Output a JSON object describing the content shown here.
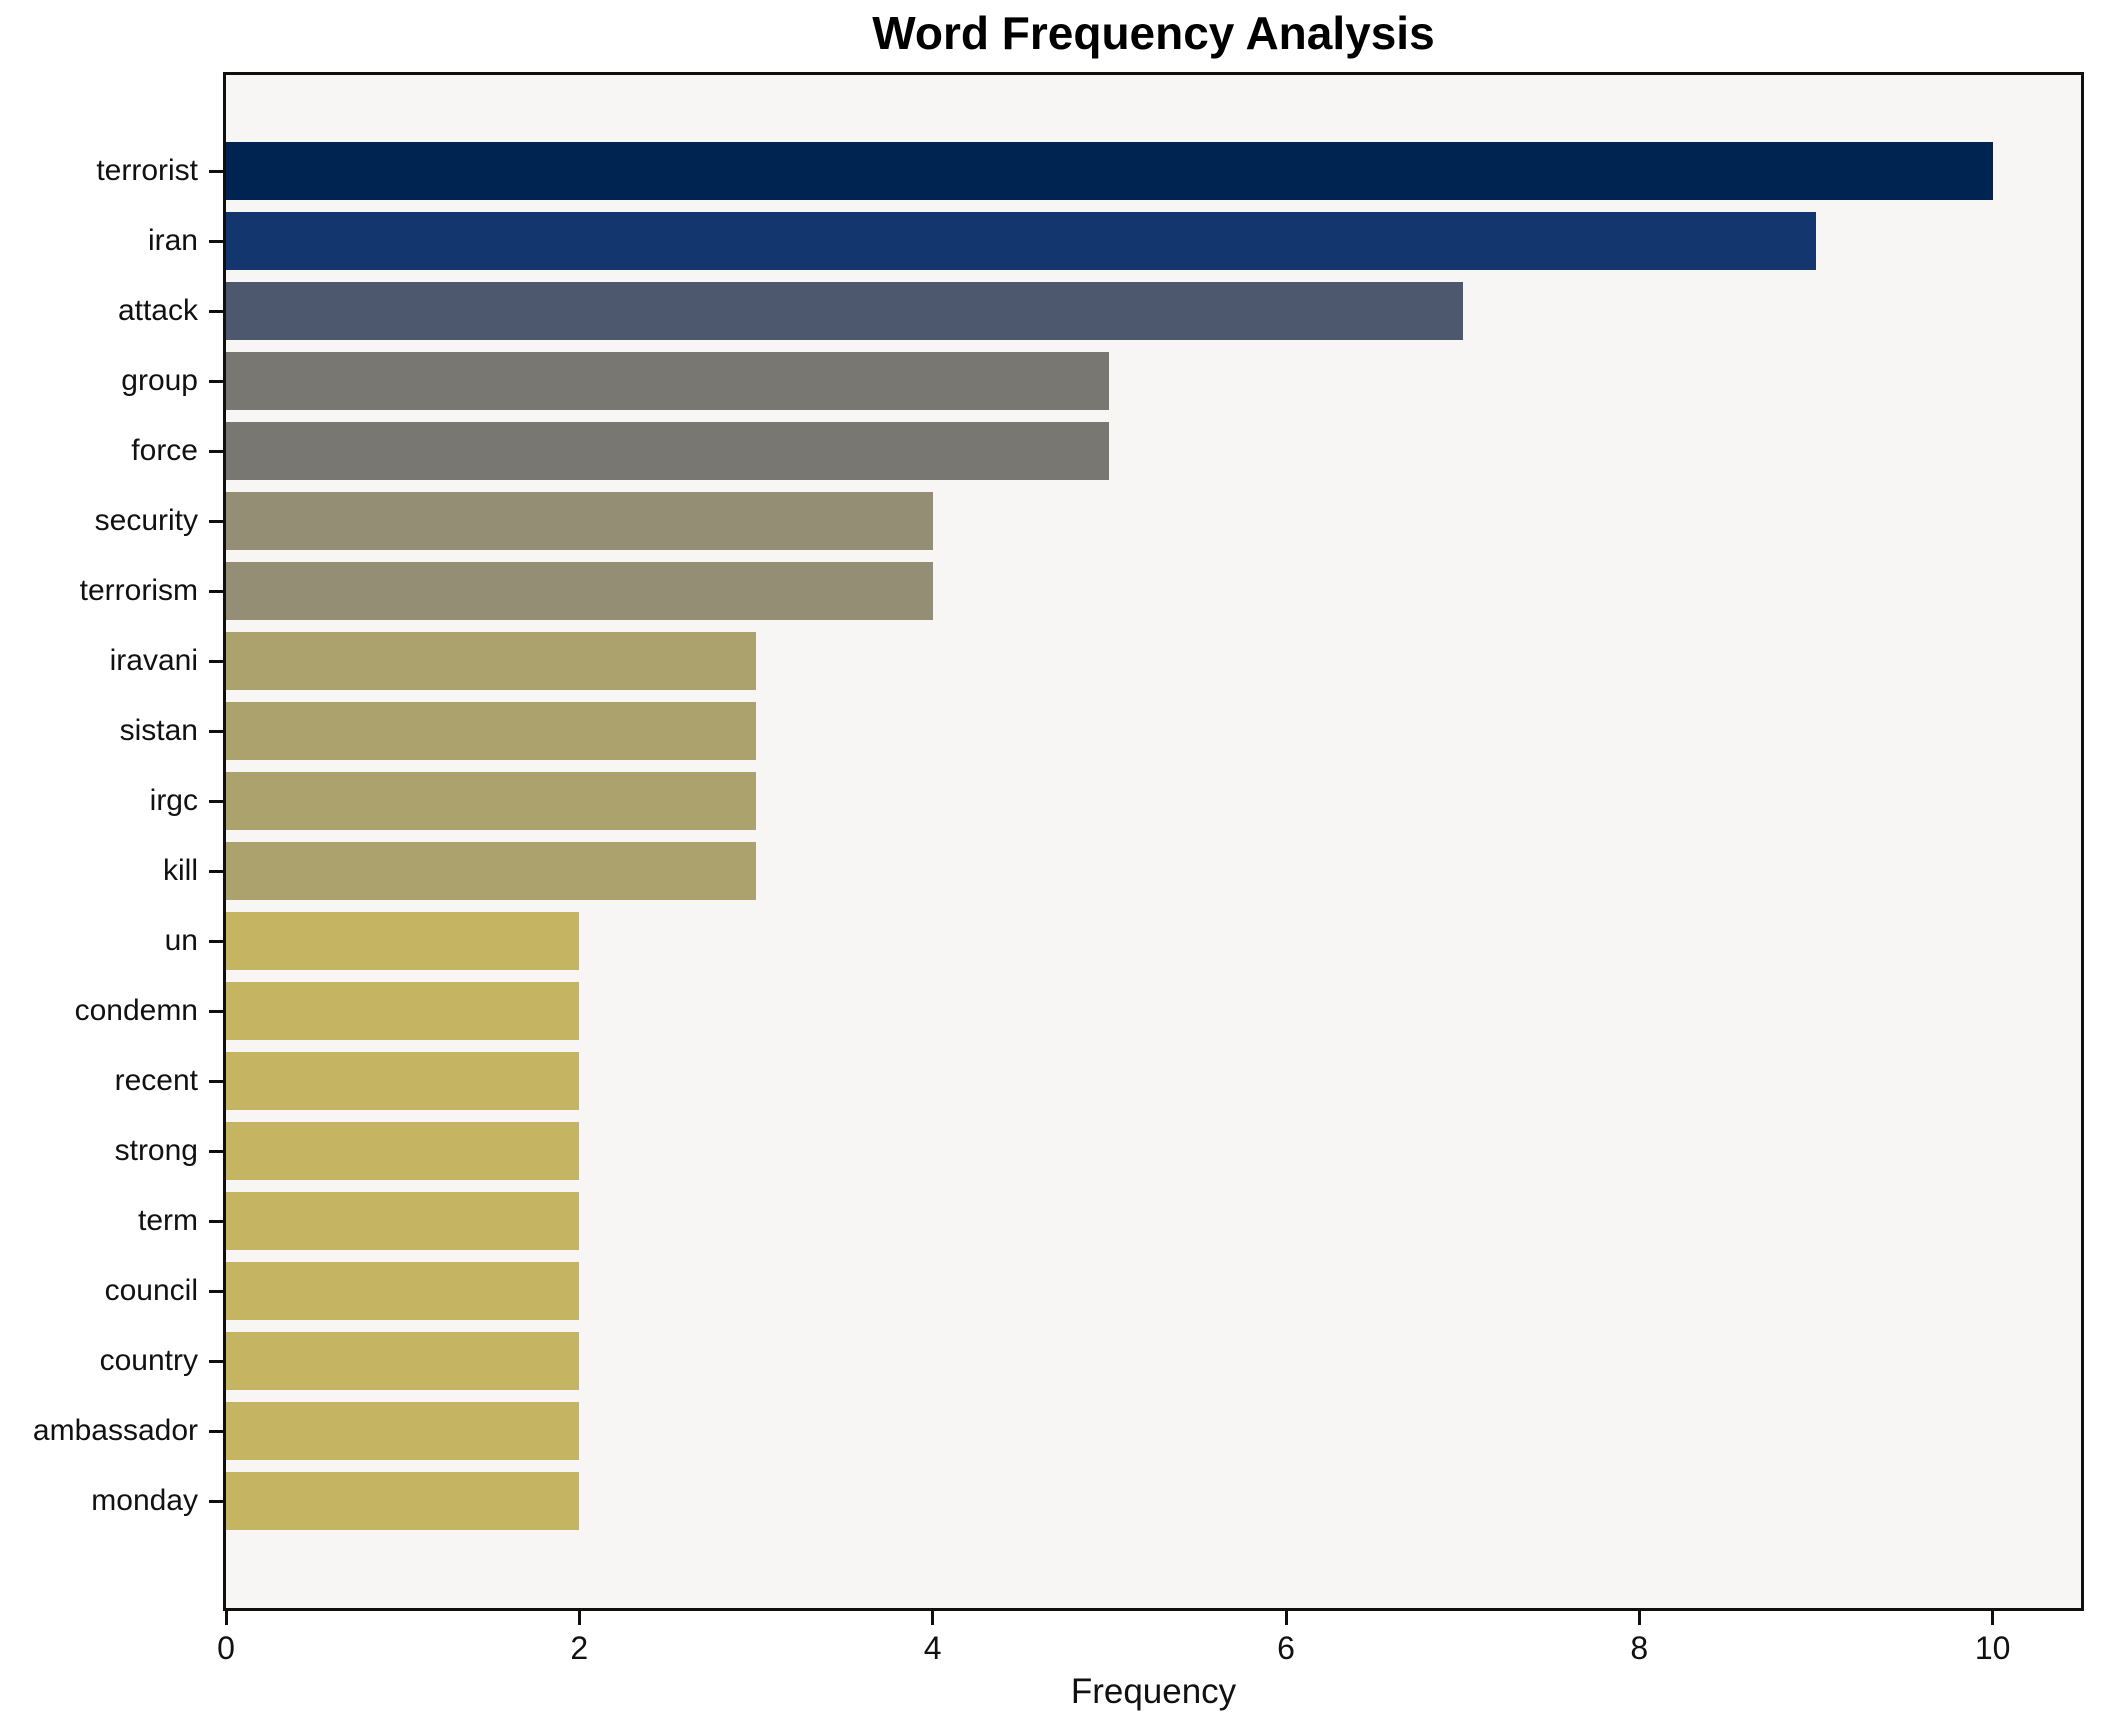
{
  "page": {
    "background_color": "#ffffff"
  },
  "chart_data": {
    "type": "bar",
    "orientation": "horizontal",
    "title": "Word Frequency Analysis",
    "xlabel": "Frequency",
    "ylabel": "",
    "categories": [
      "terrorist",
      "iran",
      "attack",
      "group",
      "force",
      "security",
      "terrorism",
      "iravani",
      "sistan",
      "irgc",
      "kill",
      "un",
      "condemn",
      "recent",
      "strong",
      "term",
      "council",
      "country",
      "ambassador",
      "monday"
    ],
    "values": [
      10,
      9,
      7,
      5,
      5,
      4,
      4,
      3,
      3,
      3,
      3,
      2,
      2,
      2,
      2,
      2,
      2,
      2,
      2,
      2
    ],
    "bar_colors": [
      "#002452",
      "#14366e",
      "#4d576e",
      "#787771",
      "#787771",
      "#948e74",
      "#948e74",
      "#aca26e",
      "#aca26e",
      "#aca26e",
      "#aca26e",
      "#c5b563",
      "#c5b563",
      "#c5b563",
      "#c5b563",
      "#c5b563",
      "#c5b563",
      "#c5b563",
      "#c5b563",
      "#c5b563"
    ],
    "xlim": [
      0,
      10.5
    ],
    "xticks": [
      "0",
      "2",
      "4",
      "6",
      "8",
      "10"
    ],
    "xtick_values": [
      0,
      2,
      4,
      6,
      8,
      10
    ],
    "grid": false,
    "legend_position": "none",
    "plot_background": "#f7f6f4",
    "axis_color": "#0f0f0f",
    "colormap": "cividis"
  }
}
